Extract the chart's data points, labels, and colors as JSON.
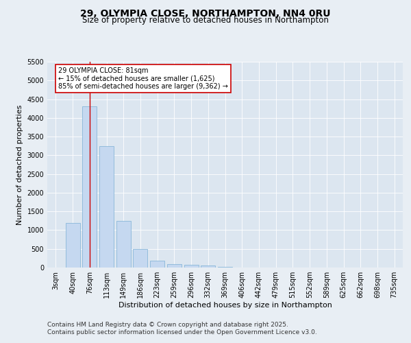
{
  "title": "29, OLYMPIA CLOSE, NORTHAMPTON, NN4 0RU",
  "subtitle": "Size of property relative to detached houses in Northampton",
  "xlabel": "Distribution of detached houses by size in Northampton",
  "ylabel": "Number of detached properties",
  "categories": [
    "3sqm",
    "40sqm",
    "76sqm",
    "113sqm",
    "149sqm",
    "186sqm",
    "223sqm",
    "259sqm",
    "296sqm",
    "332sqm",
    "369sqm",
    "406sqm",
    "442sqm",
    "479sqm",
    "515sqm",
    "552sqm",
    "589sqm",
    "625sqm",
    "662sqm",
    "698sqm",
    "735sqm"
  ],
  "values": [
    0,
    1200,
    4300,
    3250,
    1250,
    500,
    175,
    100,
    75,
    50,
    10,
    5,
    3,
    2,
    1,
    1,
    1,
    0,
    0,
    0,
    0
  ],
  "bar_color": "#c5d8f0",
  "bar_edge_color": "#7aafd4",
  "vline_x_index": 2,
  "vline_color": "#cc0000",
  "annotation_text": "29 OLYMPIA CLOSE: 81sqm\n← 15% of detached houses are smaller (1,625)\n85% of semi-detached houses are larger (9,362) →",
  "annotation_box_color": "#ffffff",
  "annotation_box_edge": "#cc0000",
  "ylim": [
    0,
    5500
  ],
  "yticks": [
    0,
    500,
    1000,
    1500,
    2000,
    2500,
    3000,
    3500,
    4000,
    4500,
    5000,
    5500
  ],
  "bg_color": "#e8eef4",
  "plot_bg_color": "#dce6f0",
  "footer_line1": "Contains HM Land Registry data © Crown copyright and database right 2025.",
  "footer_line2": "Contains public sector information licensed under the Open Government Licence v3.0.",
  "title_fontsize": 10,
  "subtitle_fontsize": 8.5,
  "tick_fontsize": 7,
  "label_fontsize": 8,
  "footer_fontsize": 6.5,
  "annotation_fontsize": 7
}
